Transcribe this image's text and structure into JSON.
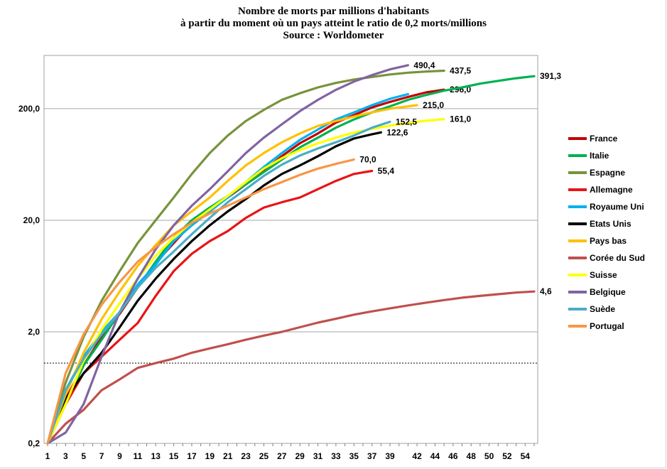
{
  "chart_data": {
    "type": "line",
    "title": "Nombre de morts par millions d'habitants",
    "subtitle": "à partir du moment où un pays atteint le ratio de 0,2 morts/millions",
    "source": "Source : Worldometer",
    "xlabel": "",
    "ylabel": "",
    "yscale": "log",
    "ylim": [
      0.2,
      600
    ],
    "xlim": [
      1,
      55
    ],
    "x_ticks": [
      "1",
      "3",
      "5",
      "7",
      "9",
      "11",
      "13",
      "15",
      "17",
      "19",
      "21",
      "23",
      "25",
      "27",
      "29",
      "31",
      "33",
      "35",
      "37",
      "39",
      "42",
      "44",
      "46",
      "48",
      "50",
      "52",
      "54"
    ],
    "y_ticks": [
      "200,0",
      "20,0",
      "2,0",
      "0,2"
    ],
    "grid": "horizontal",
    "legend_position": "right",
    "series": [
      {
        "name": "France",
        "color": "#C00000",
        "end_label": "296,0",
        "x": [
          1,
          3,
          5,
          7,
          9,
          11,
          13,
          15,
          17,
          19,
          21,
          23,
          25,
          27,
          29,
          31,
          33,
          35,
          37,
          39,
          41,
          43,
          45
        ],
        "y": [
          0.2,
          0.5,
          1.0,
          1.8,
          2.9,
          5.0,
          8.3,
          12.5,
          18.8,
          25.0,
          32.0,
          42.0,
          56.0,
          75.0,
          98.0,
          120.0,
          150.0,
          175.0,
          205.0,
          230.0,
          255.0,
          280.0,
          296.0
        ]
      },
      {
        "name": "Italie",
        "color": "#00B050",
        "end_label": "391,3",
        "x": [
          1,
          3,
          5,
          7,
          9,
          11,
          13,
          15,
          17,
          19,
          21,
          23,
          25,
          27,
          29,
          31,
          33,
          35,
          37,
          39,
          41,
          43,
          45,
          47,
          49,
          51,
          53,
          55
        ],
        "y": [
          0.2,
          0.45,
          1.0,
          1.7,
          3.0,
          5.0,
          8.5,
          14.0,
          20.0,
          26.0,
          33.0,
          42.0,
          54.0,
          70.0,
          90.0,
          110.0,
          135.0,
          160.0,
          185.0,
          210.0,
          240.0,
          265.0,
          290.0,
          310.0,
          335.0,
          355.0,
          375.0,
          391.3
        ]
      },
      {
        "name": "Espagne",
        "color": "#77933C",
        "end_label": "437,5",
        "x": [
          1,
          3,
          5,
          7,
          9,
          11,
          13,
          15,
          17,
          19,
          21,
          23,
          25,
          27,
          29,
          31,
          33,
          35,
          37,
          39,
          41,
          43,
          45
        ],
        "y": [
          0.2,
          0.7,
          1.8,
          3.8,
          7.0,
          12.5,
          20.0,
          32.0,
          52.0,
          80.0,
          115.0,
          155.0,
          195.0,
          240.0,
          275.0,
          310.0,
          340.0,
          365.0,
          385.0,
          405.0,
          420.0,
          430.0,
          437.5
        ]
      },
      {
        "name": "Allemagne",
        "color": "#E81416",
        "end_label": "55,4",
        "x": [
          1,
          3,
          5,
          7,
          9,
          11,
          13,
          15,
          17,
          19,
          21,
          23,
          25,
          27,
          29,
          31,
          33,
          35,
          37
        ],
        "y": [
          0.2,
          0.45,
          0.85,
          1.2,
          1.7,
          2.4,
          4.2,
          7.0,
          10.0,
          13.0,
          16.0,
          21.0,
          26.0,
          29.0,
          32.0,
          38.0,
          45.0,
          52.0,
          55.4
        ]
      },
      {
        "name": "Royaume Uni",
        "color": "#00B0F0",
        "end_label": "",
        "x": [
          1,
          3,
          5,
          7,
          9,
          11,
          13,
          15,
          17,
          19,
          21,
          23,
          25,
          27,
          29,
          31,
          33,
          35,
          37,
          39,
          41
        ],
        "y": [
          0.2,
          0.6,
          1.2,
          2.0,
          3.0,
          5.3,
          8.0,
          13.0,
          18.0,
          24.0,
          32.0,
          44.0,
          60.0,
          80.0,
          105.0,
          130.0,
          160.0,
          185.0,
          215.0,
          245.0,
          270.0
        ]
      },
      {
        "name": "Etats Unis",
        "color": "#000000",
        "end_label": "122,6",
        "x": [
          1,
          3,
          5,
          7,
          9,
          11,
          13,
          15,
          17,
          19,
          21,
          23,
          25,
          27,
          29,
          31,
          33,
          35,
          37,
          38
        ],
        "y": [
          0.2,
          0.5,
          0.85,
          1.3,
          2.2,
          3.8,
          6.0,
          9.0,
          13.0,
          18.0,
          24.0,
          31.0,
          41.0,
          52.0,
          62.0,
          75.0,
          92.0,
          108.0,
          118.0,
          122.6
        ]
      },
      {
        "name": "Pays bas",
        "color": "#FFC000",
        "end_label": "215,0",
        "x": [
          1,
          3,
          5,
          7,
          9,
          11,
          13,
          15,
          17,
          19,
          21,
          23,
          25,
          27,
          29,
          31,
          33,
          35,
          37,
          39,
          42
        ],
        "y": [
          0.2,
          0.55,
          1.3,
          2.6,
          4.6,
          7.8,
          12.0,
          18.0,
          24.0,
          32.0,
          45.0,
          62.0,
          80.0,
          100.0,
          120.0,
          140.0,
          155.0,
          170.0,
          185.0,
          200.0,
          215.0
        ]
      },
      {
        "name": "Corée du Sud",
        "color": "#C0504D",
        "end_label": "4,6",
        "x": [
          1,
          3,
          5,
          7,
          9,
          11,
          13,
          15,
          17,
          19,
          21,
          23,
          25,
          27,
          29,
          31,
          33,
          35,
          37,
          39,
          41,
          43,
          45,
          47,
          49,
          51,
          53,
          55
        ],
        "y": [
          0.2,
          0.3,
          0.4,
          0.6,
          0.75,
          0.95,
          1.05,
          1.15,
          1.3,
          1.42,
          1.55,
          1.7,
          1.85,
          2.0,
          2.2,
          2.42,
          2.62,
          2.85,
          3.05,
          3.25,
          3.45,
          3.65,
          3.85,
          4.05,
          4.2,
          4.35,
          4.5,
          4.6
        ]
      },
      {
        "name": "Suisse",
        "color": "#FFFF00",
        "end_label": "161,0",
        "x": [
          1,
          3,
          5,
          7,
          9,
          11,
          13,
          15,
          17,
          19,
          21,
          23,
          25,
          27,
          29,
          31,
          33,
          35,
          37,
          39,
          41,
          43,
          45
        ],
        "y": [
          0.2,
          0.45,
          1.1,
          2.1,
          3.6,
          6.0,
          9.6,
          14.0,
          19.0,
          25.0,
          33.0,
          44.0,
          58.0,
          72.0,
          85.0,
          98.0,
          110.0,
          122.0,
          132.0,
          141.0,
          149.0,
          156.0,
          161.0
        ]
      },
      {
        "name": "Belgique",
        "color": "#8064A2",
        "end_label": "490,4",
        "x": [
          1,
          3,
          5,
          7,
          9,
          11,
          13,
          15,
          17,
          19,
          21,
          23,
          25,
          27,
          29,
          31,
          33,
          35,
          37,
          39,
          41
        ],
        "y": [
          0.2,
          0.25,
          0.45,
          1.2,
          3.0,
          6.0,
          11.0,
          18.0,
          27.0,
          38.0,
          55.0,
          80.0,
          110.0,
          145.0,
          190.0,
          240.0,
          295.0,
          350.0,
          400.0,
          450.0,
          490.4
        ]
      },
      {
        "name": "Suède",
        "color": "#4BACC6",
        "end_label": "152,5",
        "x": [
          1,
          3,
          5,
          7,
          9,
          11,
          13,
          15,
          17,
          19,
          21,
          23,
          25,
          27,
          29,
          31,
          33,
          35,
          37,
          39
        ],
        "y": [
          0.2,
          0.6,
          1.15,
          1.9,
          3.0,
          5.0,
          7.5,
          10.5,
          15.0,
          21.0,
          29.0,
          38.0,
          50.0,
          63.0,
          76.0,
          88.0,
          100.0,
          115.0,
          135.0,
          152.5
        ]
      },
      {
        "name": "Portugal",
        "color": "#F79646",
        "end_label": "70,0",
        "x": [
          1,
          3,
          5,
          7,
          9,
          11,
          13,
          15,
          17,
          19,
          21,
          23,
          25,
          27,
          29,
          31,
          33,
          35
        ],
        "y": [
          0.2,
          0.85,
          1.9,
          3.5,
          5.6,
          8.5,
          11.5,
          15.0,
          19.0,
          23.0,
          27.0,
          32.0,
          38.0,
          44.0,
          51.0,
          58.0,
          64.0,
          70.0
        ]
      }
    ]
  }
}
